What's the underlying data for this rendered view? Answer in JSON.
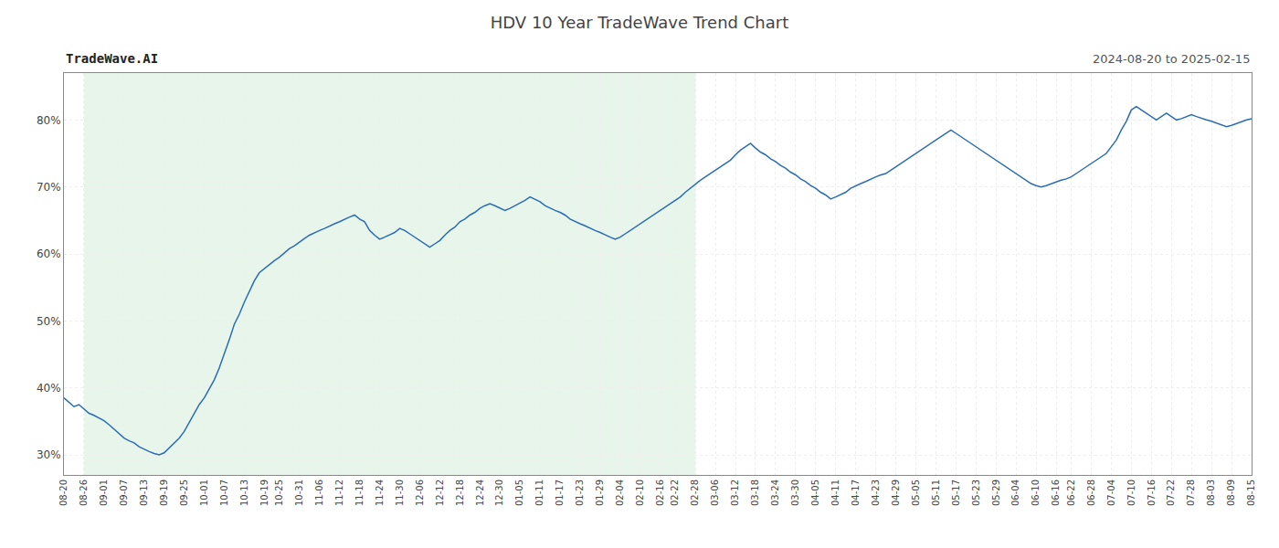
{
  "chart_data": {
    "type": "line",
    "title": "HDV 10 Year TradeWave Trend Chart",
    "subtitle": "2024-08-20 to 2025-02-15",
    "annotations": [
      "TradeWave.AI"
    ],
    "color": "#2a6db5",
    "grid": true,
    "ylim": [
      27,
      87
    ],
    "yticks": [
      {
        "value": 30,
        "label": "30%"
      },
      {
        "value": 40,
        "label": "40%"
      },
      {
        "value": 50,
        "label": "50%"
      },
      {
        "value": 60,
        "label": "60%"
      },
      {
        "value": 70,
        "label": "70%"
      },
      {
        "value": 80,
        "label": "80%"
      }
    ],
    "shaded": {
      "from": "08-26",
      "to": "02-28",
      "color": "#d4edda"
    },
    "categories": [
      "08-20",
      null,
      null,
      null,
      "08-26",
      null,
      null,
      null,
      "09-01",
      null,
      null,
      null,
      "09-07",
      null,
      null,
      null,
      "09-13",
      null,
      null,
      null,
      "09-19",
      null,
      null,
      null,
      "09-25",
      null,
      null,
      null,
      "10-01",
      null,
      null,
      null,
      "10-07",
      null,
      null,
      null,
      "10-13",
      null,
      null,
      null,
      "10-19",
      null,
      null,
      "10-25",
      null,
      null,
      null,
      "10-31",
      null,
      null,
      null,
      "11-06",
      null,
      null,
      null,
      "11-12",
      null,
      null,
      null,
      "11-18",
      null,
      null,
      null,
      "11-24",
      null,
      null,
      null,
      "11-30",
      null,
      null,
      null,
      "12-06",
      null,
      null,
      null,
      "12-12",
      null,
      null,
      null,
      "12-18",
      null,
      null,
      null,
      "12-24",
      null,
      null,
      null,
      "12-30",
      null,
      null,
      null,
      "01-05",
      null,
      null,
      null,
      "01-11",
      null,
      null,
      null,
      "01-17",
      null,
      null,
      null,
      "01-23",
      null,
      null,
      null,
      "01-29",
      null,
      null,
      null,
      "02-04",
      null,
      null,
      null,
      "02-10",
      null,
      null,
      null,
      "02-16",
      null,
      null,
      "02-22",
      null,
      null,
      null,
      "02-28",
      null,
      null,
      null,
      "03-06",
      null,
      null,
      null,
      "03-12",
      null,
      null,
      null,
      "03-18",
      null,
      null,
      null,
      "03-24",
      null,
      null,
      null,
      "03-30",
      null,
      null,
      null,
      "04-05",
      null,
      null,
      null,
      "04-11",
      null,
      null,
      null,
      "04-17",
      null,
      null,
      null,
      "04-23",
      null,
      null,
      null,
      "04-29",
      null,
      null,
      null,
      "05-05",
      null,
      null,
      null,
      "05-11",
      null,
      null,
      null,
      "05-17",
      null,
      null,
      null,
      "05-23",
      null,
      null,
      null,
      "05-29",
      null,
      null,
      null,
      "06-04",
      null,
      null,
      null,
      "06-10",
      null,
      null,
      null,
      "06-16",
      null,
      null,
      "06-22",
      null,
      null,
      null,
      "06-28",
      null,
      null,
      null,
      "07-04",
      null,
      null,
      null,
      "07-10",
      null,
      null,
      null,
      "07-16",
      null,
      null,
      null,
      "07-22",
      null,
      null,
      null,
      "07-28",
      null,
      null,
      null,
      "08-03",
      null,
      null,
      null,
      "08-09",
      null,
      null,
      null,
      "08-15"
    ],
    "values": [
      38.5,
      37.8,
      37.2,
      37.5,
      36.8,
      36.2,
      35.9,
      35.5,
      35.1,
      34.5,
      33.8,
      33.2,
      32.5,
      32.1,
      31.8,
      31.2,
      30.8,
      30.5,
      30.2,
      30.0,
      30.3,
      31.0,
      31.8,
      32.5,
      33.5,
      34.8,
      36.2,
      37.5,
      38.5,
      39.8,
      41.2,
      43.0,
      45.0,
      47.2,
      49.5,
      51.0,
      52.8,
      54.5,
      56.0,
      57.2,
      57.8,
      58.5,
      59.0,
      59.5,
      60.2,
      60.8,
      61.2,
      61.8,
      62.3,
      62.8,
      63.2,
      63.5,
      63.8,
      64.2,
      64.5,
      64.8,
      65.2,
      65.5,
      65.8,
      65.2,
      64.8,
      63.5,
      62.8,
      62.2,
      62.5,
      62.8,
      63.2,
      63.8,
      63.5,
      63.0,
      62.5,
      62.0,
      61.5,
      61.0,
      61.5,
      62.0,
      62.8,
      63.5,
      64.0,
      64.8,
      65.2,
      65.8,
      66.2,
      66.8,
      67.2,
      67.5,
      67.2,
      66.8,
      66.5,
      66.8,
      67.2,
      67.5,
      68.0,
      68.5,
      68.2,
      67.8,
      67.2,
      66.8,
      66.5,
      66.2,
      65.8,
      65.2,
      64.8,
      64.5,
      64.2,
      63.8,
      63.5,
      63.2,
      62.8,
      62.5,
      62.2,
      62.5,
      63.0,
      63.5,
      64.0,
      64.5,
      65.0,
      65.5,
      66.0,
      66.5,
      67.0,
      67.5,
      68.0,
      68.5,
      69.2,
      69.8,
      70.5,
      71.0,
      71.5,
      72.0,
      72.5,
      73.0,
      73.5,
      74.0,
      74.8,
      75.5,
      76.0,
      76.5,
      75.8,
      75.2,
      74.8,
      74.2,
      73.8,
      73.2,
      72.8,
      72.2,
      71.8,
      71.2,
      70.8,
      70.2,
      69.8,
      69.2,
      68.8,
      68.2,
      68.5,
      68.8,
      69.2,
      69.8,
      70.2,
      70.5,
      70.8,
      71.2,
      71.5,
      71.8,
      72.0,
      72.5,
      73.0,
      73.5,
      74.0,
      74.5,
      75.0,
      75.5,
      76.0,
      76.5,
      77.0,
      77.5,
      78.0,
      78.5,
      78.0,
      77.5,
      77.0,
      76.5,
      76.0,
      75.5,
      75.0,
      74.5,
      74.0,
      73.5,
      73.0,
      72.5,
      72.0,
      71.5,
      71.0,
      70.5,
      70.2,
      70.0,
      70.2,
      70.5,
      70.8,
      71.0,
      71.2,
      71.5,
      72.0,
      72.5,
      73.0,
      73.5,
      74.0,
      74.5,
      75.0,
      76.0,
      77.0,
      78.5,
      79.8,
      81.5,
      82.0,
      81.5,
      81.0,
      80.5,
      80.0,
      80.5,
      81.0,
      80.5,
      80.0,
      80.2,
      80.5,
      80.8,
      80.5,
      80.2,
      80.0,
      79.8,
      79.5,
      79.2,
      79.0,
      79.2,
      79.5,
      79.8,
      80.0,
      80.2
    ]
  }
}
